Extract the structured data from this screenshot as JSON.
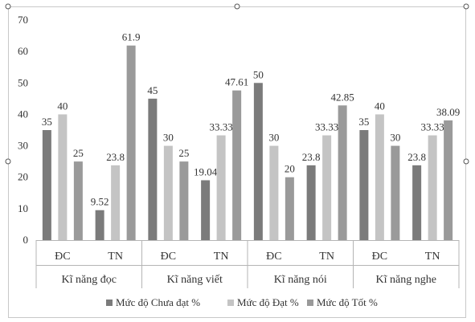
{
  "chart_data": {
    "type": "bar",
    "groups": [
      "Kĩ năng đọc",
      "Kĩ năng viết",
      "Kĩ năng nói",
      "Kĩ năng nghe"
    ],
    "subcategories": [
      "ĐC",
      "TN"
    ],
    "series": [
      {
        "name": "Mức độ Chưa đạt %",
        "color": "#7b7b7b",
        "values": [
          [
            35,
            9.52
          ],
          [
            45,
            19.04
          ],
          [
            50,
            23.8
          ],
          [
            35,
            23.8
          ]
        ]
      },
      {
        "name": "Mức độ Đạt %",
        "color": "#c4c4c4",
        "values": [
          [
            40,
            23.8
          ],
          [
            30,
            33.33
          ],
          [
            30,
            33.33
          ],
          [
            40,
            33.33
          ]
        ]
      },
      {
        "name": "Mức độ Tốt %",
        "color": "#9a9a9a",
        "values": [
          [
            25,
            61.9
          ],
          [
            25,
            47.61
          ],
          [
            20,
            42.85
          ],
          [
            30,
            38.09
          ]
        ]
      }
    ],
    "data_labels": [
      [
        [
          "35",
          "9.52"
        ],
        [
          "45",
          "19.04"
        ],
        [
          "50",
          "23.8"
        ],
        [
          "35",
          "23.8"
        ]
      ],
      [
        [
          "40",
          "23.8"
        ],
        [
          "30",
          "33.33"
        ],
        [
          "30",
          "33.33"
        ],
        [
          "40",
          "33.33"
        ]
      ],
      [
        [
          "25",
          "61.9"
        ],
        [
          "25",
          "47.61"
        ],
        [
          "20",
          "42.85"
        ],
        [
          "30",
          "38.09"
        ]
      ]
    ],
    "ylim": [
      0,
      70
    ],
    "yticks": [
      0,
      10,
      20,
      30,
      40,
      50,
      60,
      70
    ],
    "grid": false,
    "legend_position": "bottom"
  }
}
